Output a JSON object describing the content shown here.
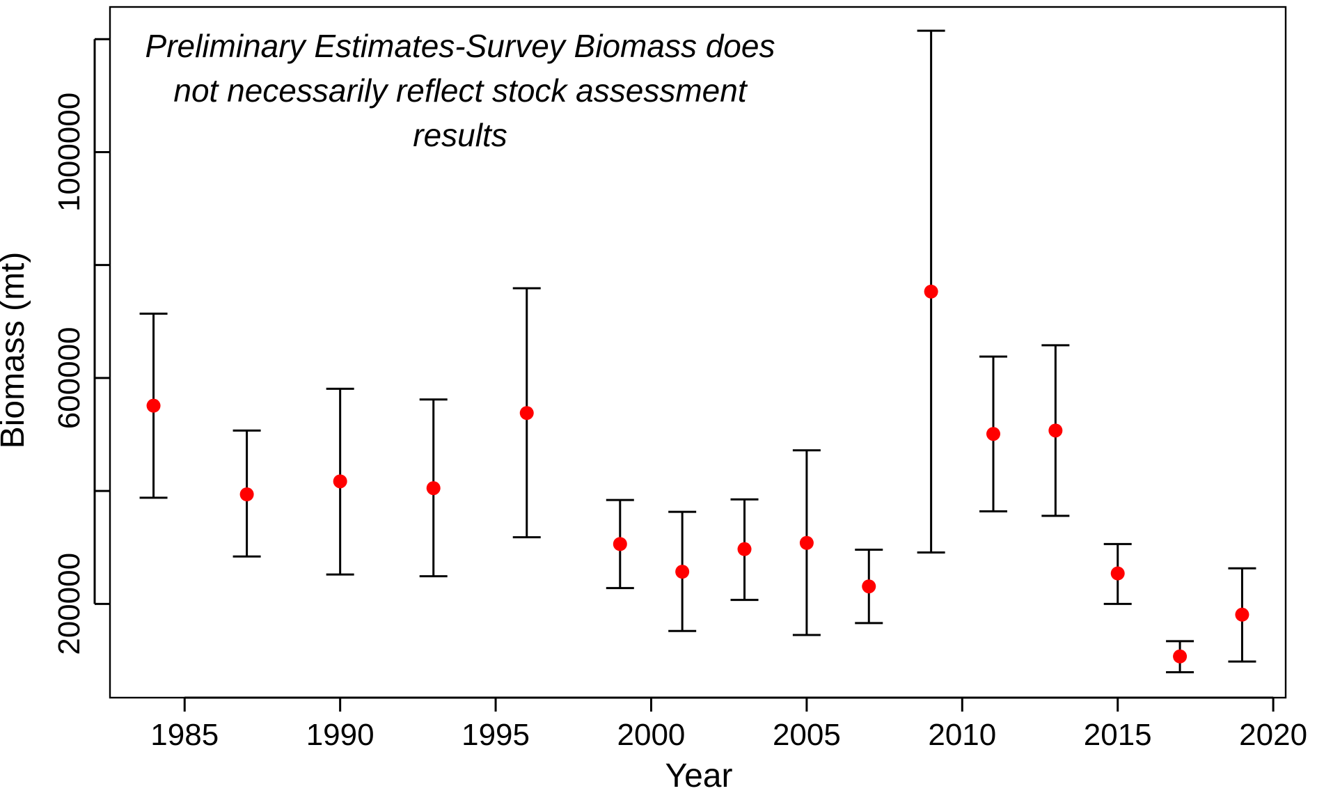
{
  "chart_data": {
    "type": "errorbar",
    "xlabel": "Year",
    "ylabel": "Biomass (mt)",
    "annotation": [
      "Preliminary Estimates-Survey Biomass does",
      "not necessarily reflect stock assessment",
      "results"
    ],
    "xlim": [
      1982.6,
      2020.4
    ],
    "xticks": [
      1985,
      1990,
      1995,
      2000,
      2005,
      2010,
      2015,
      2020
    ],
    "ylim": [
      34000,
      1257000
    ],
    "yticks": [
      {
        "value": 200000,
        "label": "200000"
      },
      {
        "value": 400000,
        "label": null
      },
      {
        "value": 600000,
        "label": "600000"
      },
      {
        "value": 800000,
        "label": null
      },
      {
        "value": 1000000,
        "label": "1000000"
      },
      {
        "value": 1200000,
        "label": null
      }
    ],
    "point_color": "#ff0000",
    "bar_color": "#000000",
    "x": [
      1984,
      1987,
      1990,
      1993,
      1996,
      1999,
      2001,
      2003,
      2005,
      2007,
      2009,
      2011,
      2013,
      2015,
      2017,
      2019
    ],
    "values": [
      551000,
      394000,
      417000,
      405000,
      538000,
      306000,
      257000,
      297000,
      308000,
      231000,
      753000,
      501000,
      507000,
      254000,
      107000,
      181000
    ],
    "lower": [
      388000,
      284000,
      252000,
      249000,
      318000,
      228000,
      152000,
      207000,
      145000,
      166000,
      291000,
      364000,
      356000,
      200000,
      79000,
      98000
    ],
    "upper": [
      714000,
      507000,
      581000,
      562000,
      759000,
      384000,
      363000,
      385000,
      472000,
      296000,
      1215000,
      638000,
      658000,
      306000,
      134000,
      263000
    ]
  }
}
